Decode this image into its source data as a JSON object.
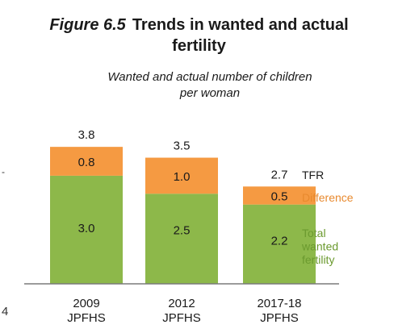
{
  "figure": {
    "number": "Figure 6.5",
    "title_line1": "Trends in wanted and actual",
    "title_line2": "fertility"
  },
  "chart_data": {
    "type": "bar",
    "stacked": true,
    "title": "Wanted and actual number of children",
    "subtitle": "per woman",
    "categories": [
      [
        "2009",
        "JPFHS"
      ],
      [
        "2012",
        "JPFHS"
      ],
      [
        "2017-18",
        "JPFHS"
      ]
    ],
    "series": [
      {
        "name": "Total wanted fertility",
        "legend_lines": [
          "Total",
          "wanted",
          "fertility"
        ],
        "values": [
          3.0,
          2.5,
          2.2
        ],
        "labels": [
          "3.0",
          "2.5",
          "2.2"
        ],
        "color": "#8db84a"
      },
      {
        "name": "Difference",
        "legend_lines": [
          "Difference"
        ],
        "values": [
          0.8,
          1.0,
          0.5
        ],
        "labels": [
          "0.8",
          "1.0",
          "0.5"
        ],
        "color": "#f59a42"
      }
    ],
    "totals": {
      "name": "TFR",
      "values": [
        3.8,
        3.5,
        2.7
      ],
      "labels": [
        "3.8",
        "3.5",
        "2.7"
      ]
    },
    "ylim": [
      0,
      4.4
    ],
    "grid": false,
    "legend_colors": {
      "TFR": "#1a1a1a",
      "Difference": "#e8892e",
      "Total wanted fertility": "#6b9a2f"
    }
  },
  "edge_marks": {
    "left_upper": "-",
    "left_lower": "4"
  }
}
